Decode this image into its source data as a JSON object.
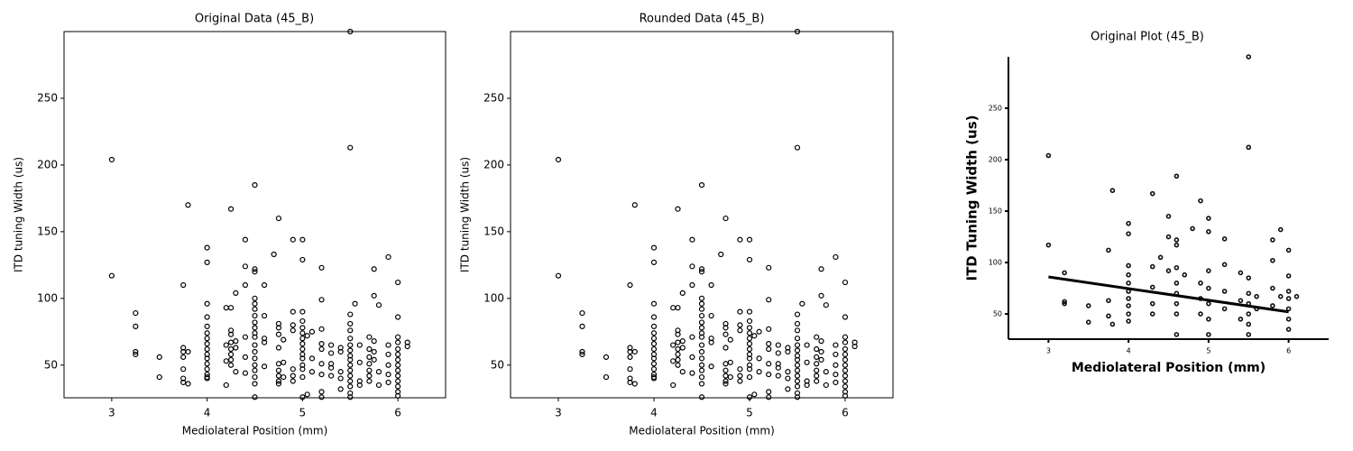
{
  "chart_data": [
    {
      "type": "scatter",
      "title": "Original Data (45_B)",
      "xlabel": "Mediolateral Position (mm)",
      "ylabel": "ITD tuning Width (us)",
      "xlim": [
        2.5,
        6.5
      ],
      "ylim": [
        25.5,
        300
      ],
      "xticks": [
        3,
        4,
        5,
        6
      ],
      "yticks": [
        50,
        100,
        150,
        200,
        250
      ],
      "color": "#000000",
      "box": true,
      "x": [
        3,
        3,
        3.25,
        3.25,
        3.25,
        3.25,
        3.5,
        3.5,
        3.75,
        3.75,
        3.75,
        3.75,
        3.75,
        3.75,
        3.75,
        3.8,
        3.8,
        3.8,
        4,
        4,
        4,
        4,
        4,
        4,
        4,
        4,
        4,
        4,
        4,
        4,
        4,
        4,
        4,
        4,
        4.2,
        4.2,
        4.2,
        4.2,
        4.25,
        4.25,
        4.25,
        4.25,
        4.25,
        4.25,
        4.25,
        4.25,
        4.25,
        4.3,
        4.3,
        4.3,
        4.3,
        4.4,
        4.4,
        4.4,
        4.4,
        4.4,
        4.4,
        4.5,
        4.5,
        4.5,
        4.5,
        4.5,
        4.5,
        4.5,
        4.5,
        4.5,
        4.5,
        4.5,
        4.5,
        4.5,
        4.5,
        4.5,
        4.5,
        4.5,
        4.5,
        4.5,
        4.6,
        4.6,
        4.6,
        4.6,
        4.6,
        4.7,
        4.75,
        4.75,
        4.75,
        4.75,
        4.75,
        4.75,
        4.75,
        4.75,
        4.75,
        4.75,
        4.8,
        4.8,
        4.8,
        4.9,
        4.9,
        4.9,
        4.9,
        4.9,
        4.9,
        4.9,
        5,
        5,
        5,
        5,
        5,
        5,
        5,
        5,
        5,
        5,
        5,
        5,
        5,
        5,
        5,
        5.05,
        5.05,
        5.1,
        5.1,
        5.1,
        5.2,
        5.2,
        5.2,
        5.2,
        5.2,
        5.2,
        5.2,
        5.2,
        5.2,
        5.3,
        5.3,
        5.3,
        5.3,
        5.3,
        5.4,
        5.4,
        5.4,
        5.4,
        5.4,
        5.5,
        5.5,
        5.5,
        5.5,
        5.5,
        5.5,
        5.5,
        5.5,
        5.5,
        5.5,
        5.5,
        5.5,
        5.5,
        5.5,
        5.5,
        5.5,
        5.5,
        5.55,
        5.6,
        5.6,
        5.6,
        5.6,
        5.7,
        5.7,
        5.7,
        5.7,
        5.7,
        5.7,
        5.7,
        5.75,
        5.75,
        5.75,
        5.75,
        5.75,
        5.8,
        5.8,
        5.8,
        5.9,
        5.9,
        5.9,
        5.9,
        5.9,
        5.9,
        6,
        6,
        6,
        6,
        6,
        6,
        6,
        6,
        6,
        6,
        6,
        6,
        6,
        6,
        6.1,
        6.1
      ],
      "values": [
        204,
        117,
        89,
        79,
        60,
        58,
        56,
        41,
        110,
        63,
        60,
        56,
        47,
        40,
        37,
        170,
        60,
        36,
        138,
        127,
        96,
        86,
        79,
        74,
        70,
        66,
        62,
        58,
        55,
        51,
        47,
        43,
        41,
        40,
        93,
        65,
        53,
        35,
        167,
        93,
        76,
        73,
        67,
        62,
        58,
        54,
        50,
        104,
        68,
        63,
        45,
        144,
        124,
        110,
        71,
        56,
        44,
        185,
        122,
        120,
        100,
        96,
        92,
        87,
        82,
        78,
        74,
        71,
        65,
        60,
        55,
        50,
        46,
        41,
        36,
        26,
        110,
        87,
        70,
        67,
        49,
        133,
        160,
        81,
        78,
        73,
        63,
        51,
        46,
        42,
        38,
        36,
        69,
        52,
        41,
        144,
        90,
        80,
        76,
        47,
        42,
        38,
        144,
        129,
        90,
        83,
        78,
        74,
        70,
        66,
        62,
        58,
        55,
        50,
        47,
        41,
        26,
        72,
        28,
        75,
        55,
        45,
        123,
        99,
        77,
        66,
        62,
        51,
        43,
        30,
        26,
        65,
        59,
        51,
        48,
        42,
        63,
        60,
        45,
        40,
        32,
        300,
        213,
        88,
        81,
        76,
        70,
        65,
        61,
        57,
        54,
        50,
        46,
        42,
        38,
        34,
        29,
        26,
        96,
        65,
        52,
        38,
        35,
        71,
        62,
        56,
        51,
        46,
        42,
        38,
        122,
        102,
        68,
        60,
        54,
        95,
        45,
        35,
        131,
        65,
        58,
        50,
        43,
        37,
        112,
        86,
        71,
        67,
        62,
        58,
        54,
        50,
        46,
        42,
        38,
        34,
        30,
        27,
        67,
        64
      ]
    },
    {
      "type": "scatter",
      "title": "Rounded Data (45_B)",
      "xlabel": "Mediolateral Position (mm)",
      "ylabel": "ITD tuning Width (us)",
      "xlim": [
        2.5,
        6.5
      ],
      "ylim": [
        25.5,
        300
      ],
      "xticks": [
        3,
        4,
        5,
        6
      ],
      "yticks": [
        50,
        100,
        150,
        200,
        250
      ],
      "color": "#000000",
      "box": true,
      "x": [
        3,
        3,
        3.25,
        3.25,
        3.25,
        3.25,
        3.5,
        3.5,
        3.75,
        3.75,
        3.75,
        3.75,
        3.75,
        3.75,
        3.75,
        3.8,
        3.8,
        3.8,
        4,
        4,
        4,
        4,
        4,
        4,
        4,
        4,
        4,
        4,
        4,
        4,
        4,
        4,
        4,
        4,
        4.2,
        4.2,
        4.2,
        4.2,
        4.25,
        4.25,
        4.25,
        4.25,
        4.25,
        4.25,
        4.25,
        4.25,
        4.25,
        4.3,
        4.3,
        4.3,
        4.3,
        4.4,
        4.4,
        4.4,
        4.4,
        4.4,
        4.4,
        4.5,
        4.5,
        4.5,
        4.5,
        4.5,
        4.5,
        4.5,
        4.5,
        4.5,
        4.5,
        4.5,
        4.5,
        4.5,
        4.5,
        4.5,
        4.5,
        4.5,
        4.5,
        4.5,
        4.6,
        4.6,
        4.6,
        4.6,
        4.6,
        4.7,
        4.75,
        4.75,
        4.75,
        4.75,
        4.75,
        4.75,
        4.75,
        4.75,
        4.75,
        4.75,
        4.8,
        4.8,
        4.8,
        4.9,
        4.9,
        4.9,
        4.9,
        4.9,
        4.9,
        4.9,
        5,
        5,
        5,
        5,
        5,
        5,
        5,
        5,
        5,
        5,
        5,
        5,
        5,
        5,
        5,
        5.05,
        5.05,
        5.1,
        5.1,
        5.1,
        5.2,
        5.2,
        5.2,
        5.2,
        5.2,
        5.2,
        5.2,
        5.2,
        5.2,
        5.3,
        5.3,
        5.3,
        5.3,
        5.3,
        5.4,
        5.4,
        5.4,
        5.4,
        5.4,
        5.5,
        5.5,
        5.5,
        5.5,
        5.5,
        5.5,
        5.5,
        5.5,
        5.5,
        5.5,
        5.5,
        5.5,
        5.5,
        5.5,
        5.5,
        5.5,
        5.5,
        5.55,
        5.6,
        5.6,
        5.6,
        5.6,
        5.7,
        5.7,
        5.7,
        5.7,
        5.7,
        5.7,
        5.7,
        5.75,
        5.75,
        5.75,
        5.75,
        5.75,
        5.8,
        5.8,
        5.8,
        5.9,
        5.9,
        5.9,
        5.9,
        5.9,
        5.9,
        6,
        6,
        6,
        6,
        6,
        6,
        6,
        6,
        6,
        6,
        6,
        6,
        6,
        6,
        6.1,
        6.1
      ],
      "values": [
        204,
        117,
        89,
        79,
        60,
        58,
        56,
        41,
        110,
        63,
        60,
        56,
        47,
        40,
        37,
        170,
        60,
        36,
        138,
        127,
        96,
        86,
        79,
        74,
        70,
        66,
        62,
        58,
        55,
        51,
        47,
        43,
        41,
        40,
        93,
        65,
        53,
        35,
        167,
        93,
        76,
        73,
        67,
        62,
        58,
        54,
        50,
        104,
        68,
        63,
        45,
        144,
        124,
        110,
        71,
        56,
        44,
        185,
        122,
        120,
        100,
        96,
        92,
        87,
        82,
        78,
        74,
        71,
        65,
        60,
        55,
        50,
        46,
        41,
        36,
        26,
        110,
        87,
        70,
        67,
        49,
        133,
        160,
        81,
        78,
        73,
        63,
        51,
        46,
        42,
        38,
        36,
        69,
        52,
        41,
        144,
        90,
        80,
        76,
        47,
        42,
        38,
        144,
        129,
        90,
        83,
        78,
        74,
        70,
        66,
        62,
        58,
        55,
        50,
        47,
        41,
        26,
        72,
        28,
        75,
        55,
        45,
        123,
        99,
        77,
        66,
        62,
        51,
        43,
        30,
        26,
        65,
        59,
        51,
        48,
        42,
        63,
        60,
        45,
        40,
        32,
        300,
        213,
        88,
        81,
        76,
        70,
        65,
        61,
        57,
        54,
        50,
        46,
        42,
        38,
        34,
        29,
        26,
        96,
        65,
        52,
        38,
        35,
        71,
        62,
        56,
        51,
        46,
        42,
        38,
        122,
        102,
        68,
        60,
        54,
        95,
        45,
        35,
        131,
        65,
        58,
        50,
        43,
        37,
        112,
        86,
        71,
        67,
        62,
        58,
        54,
        50,
        46,
        42,
        38,
        34,
        30,
        27,
        67,
        64
      ]
    },
    {
      "type": "scatter",
      "title": "Original Plot (45_B)",
      "xlabel": "Mediolateral Position (mm)",
      "ylabel": "ITD Tuning Width (us)",
      "xlim": [
        2.5,
        6.5
      ],
      "ylim": [
        25.5,
        300
      ],
      "xticks": [
        3,
        4,
        5,
        6
      ],
      "yticks": [
        50,
        100,
        150,
        200,
        250
      ],
      "color": "#111111",
      "box": false,
      "x": [
        3,
        3,
        3.2,
        3.2,
        3.2,
        3.5,
        3.5,
        3.75,
        3.75,
        3.75,
        3.8,
        3.8,
        4,
        4,
        4,
        4,
        4,
        4,
        4,
        4,
        4,
        4,
        4.3,
        4.3,
        4.3,
        4.3,
        4.3,
        4.4,
        4.5,
        4.5,
        4.5,
        4.6,
        4.6,
        4.6,
        4.6,
        4.6,
        4.6,
        4.6,
        4.6,
        4.6,
        4.7,
        4.8,
        4.9,
        4.9,
        4.9,
        4.9,
        5,
        5,
        5,
        5,
        5,
        5,
        5,
        5.2,
        5.2,
        5.2,
        5.2,
        5.4,
        5.4,
        5.4,
        5.5,
        5.5,
        5.5,
        5.5,
        5.5,
        5.5,
        5.5,
        5.5,
        5.6,
        5.6,
        5.8,
        5.8,
        5.8,
        5.8,
        5.9,
        5.9,
        6,
        6,
        6,
        6,
        6,
        6,
        6,
        6.1
      ],
      "values": [
        204,
        117,
        90,
        62,
        60,
        58,
        42,
        112,
        63,
        48,
        170,
        40,
        138,
        128,
        97,
        88,
        80,
        72,
        65,
        58,
        50,
        43,
        167,
        96,
        76,
        60,
        50,
        105,
        145,
        125,
        92,
        184,
        122,
        117,
        95,
        80,
        70,
        60,
        50,
        30,
        88,
        133,
        160,
        80,
        65,
        50,
        143,
        130,
        92,
        75,
        60,
        45,
        30,
        123,
        98,
        72,
        55,
        90,
        63,
        45,
        300,
        212,
        85,
        70,
        60,
        50,
        40,
        30,
        67,
        55,
        122,
        102,
        75,
        58,
        132,
        67,
        112,
        87,
        72,
        65,
        55,
        45,
        35,
        67
      ],
      "fit_line": {
        "x": [
          3,
          6
        ],
        "values": [
          86,
          52
        ]
      }
    }
  ]
}
